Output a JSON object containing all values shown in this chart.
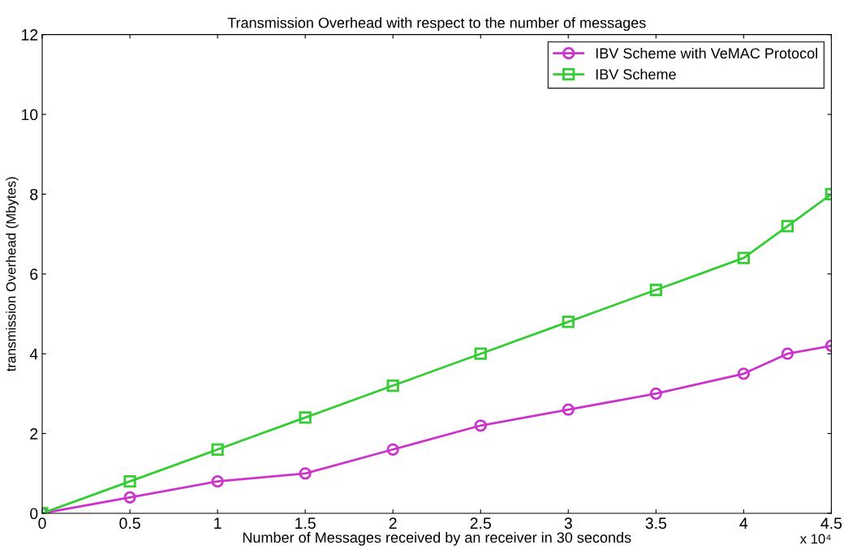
{
  "chart_data": {
    "type": "line",
    "title": "Transmission Overhead with respect to the number of messages",
    "xlabel": "Number of Messages received by an receiver in 30 seconds",
    "ylabel": "transmission Overhead (Mbytes)",
    "x": [
      0,
      0.5,
      1,
      1.5,
      2,
      2.5,
      3,
      3.5,
      4,
      4.25,
      4.5
    ],
    "series": [
      {
        "name": "IBV Scheme with VeMAC Protocol",
        "color": "#cc33cc",
        "marker": "circle",
        "values": [
          0,
          0.4,
          0.8,
          1.0,
          1.6,
          2.2,
          2.6,
          3.0,
          3.5,
          4.0,
          4.2
        ]
      },
      {
        "name": "IBV Scheme",
        "color": "#33cc33",
        "marker": "square",
        "values": [
          0,
          0.8,
          1.6,
          2.4,
          3.2,
          4.0,
          4.8,
          5.6,
          6.4,
          7.2,
          8.0
        ]
      }
    ],
    "xlim": [
      0,
      4.5
    ],
    "xticks": [
      0,
      0.5,
      1,
      1.5,
      2,
      2.5,
      3,
      3.5,
      4,
      4.5
    ],
    "ylim": [
      0,
      12
    ],
    "yticks": [
      0,
      2,
      4,
      6,
      8,
      10,
      12
    ],
    "annotations": [
      "x 10⁴"
    ],
    "legend": "top right",
    "grid": false,
    "line_style": "solid"
  }
}
